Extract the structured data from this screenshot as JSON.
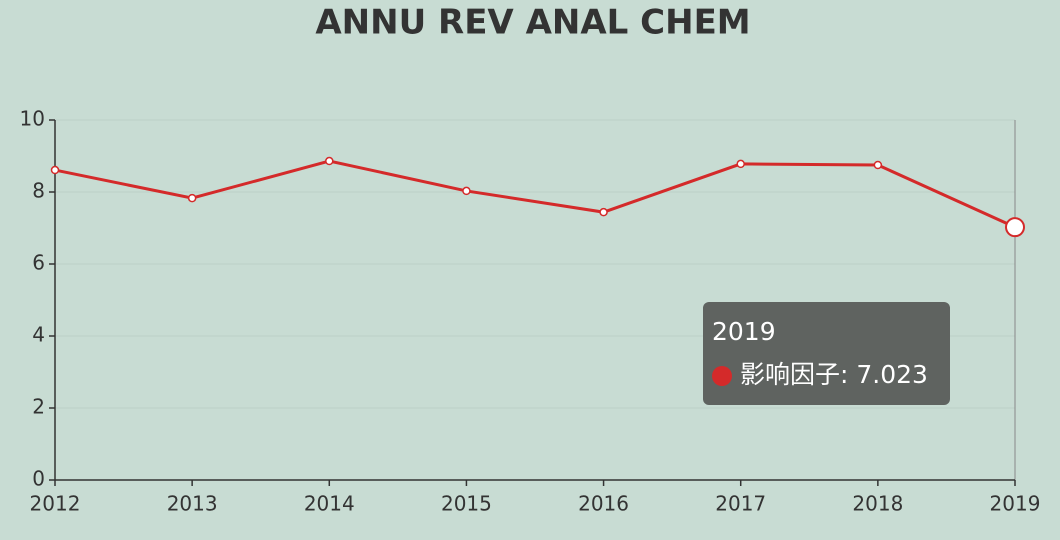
{
  "chart_data": {
    "type": "line",
    "title": "ANNU REV ANAL CHEM",
    "categories": [
      "2012",
      "2013",
      "2014",
      "2015",
      "2016",
      "2017",
      "2018",
      "2019"
    ],
    "series": [
      {
        "color": "#d42a2a",
        "values": [
          8.61,
          7.83,
          8.86,
          8.03,
          7.44,
          8.78,
          8.75,
          7.023
        ]
      }
    ],
    "ylim": [
      0,
      10
    ],
    "yticks": [
      0,
      2,
      4,
      6,
      8,
      10
    ],
    "grid": true,
    "tooltip": {
      "title": "2019",
      "text": "影响因子: 7.023"
    }
  }
}
